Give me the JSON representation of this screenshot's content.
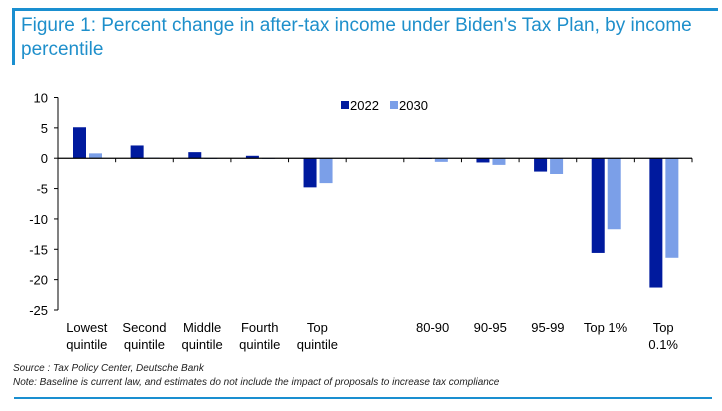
{
  "title": "Figure 1: Percent change in after-tax income under Biden's Tax Plan, by income percentile",
  "chart_data": {
    "type": "bar",
    "title": "Figure 1: Percent change in after-tax income under Biden's Tax Plan, by income percentile",
    "xlabel": "",
    "ylabel": "",
    "categories": [
      [
        "Lowest",
        "quintile"
      ],
      [
        "Second",
        "quintile"
      ],
      [
        "Middle",
        "quintile"
      ],
      [
        "Fourth",
        "quintile"
      ],
      [
        "Top",
        "quintile"
      ],
      [
        "",
        ""
      ],
      [
        "80-90",
        ""
      ],
      [
        "90-95",
        ""
      ],
      [
        "95-99",
        ""
      ],
      [
        "Top 1%",
        ""
      ],
      [
        "Top",
        "0.1%"
      ]
    ],
    "series": [
      {
        "name": "2022",
        "color": "#001a9e",
        "values": [
          5.1,
          2.1,
          1.0,
          0.4,
          -4.8,
          null,
          0.0,
          -0.7,
          -2.2,
          -15.6,
          -21.3
        ]
      },
      {
        "name": "2030",
        "color": "#7b9fe8",
        "values": [
          0.8,
          0.1,
          0.0,
          -0.1,
          -4.1,
          null,
          -0.6,
          -1.1,
          -2.6,
          -11.7,
          -16.4
        ]
      }
    ],
    "ylim": [
      -25,
      10
    ],
    "yticks": [
      10,
      5,
      0,
      -5,
      -10,
      -15,
      -20,
      -25
    ],
    "grid": false,
    "legend": "top-center"
  },
  "source": "Source : Tax Policy Center, Deutsche Bank",
  "note": "Note: Baseline is current law, and estimates do not include the impact of proposals to increase tax compliance"
}
